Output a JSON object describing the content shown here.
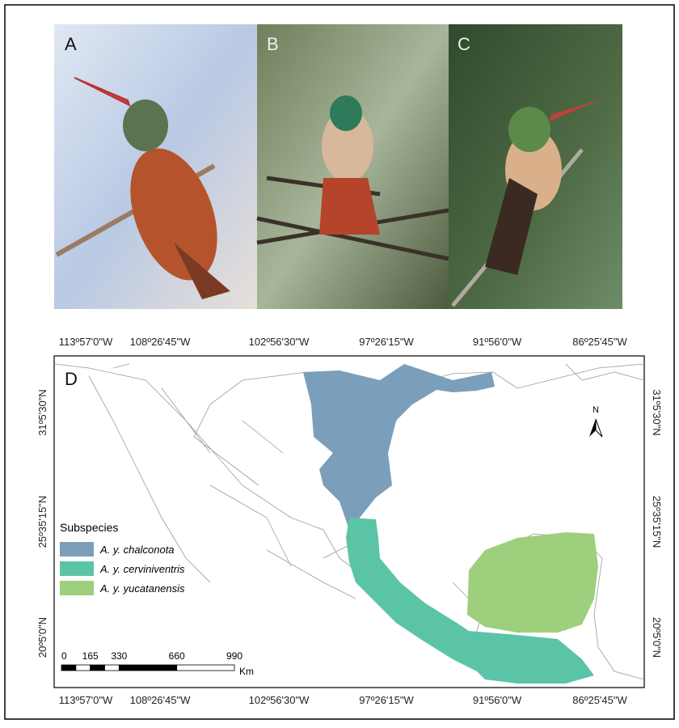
{
  "photos": [
    "A",
    "B",
    "C"
  ],
  "map": {
    "label": "D",
    "north": "N",
    "top_labels": [
      "113º57'0\"W",
      "108º26'45\"W",
      "102º56'30\"W",
      "97º26'15\"W",
      "91º56'0\"W",
      "86º25'45\"W"
    ],
    "bottom_labels": [
      "113º57'0\"W",
      "108º26'45\"W",
      "102º56'30\"W",
      "97º26'15\"W",
      "91º56'0\"W",
      "86º25'45\"W"
    ],
    "left_labels": [
      "31º5'30\"N",
      "25º35'15\"N",
      "20º5'0\"N"
    ],
    "right_labels": [
      "31º5'30\"N",
      "25º35'15\"N",
      "20º5'0\"N"
    ],
    "legend": {
      "title": "Subspecies",
      "items": [
        {
          "label": "A. y. chalconota",
          "color": "#7b9fba"
        },
        {
          "label": "A. y. cerviniventris",
          "color": "#5cc4a6"
        },
        {
          "label": "A. y. yucatanensis",
          "color": "#9dcf7c"
        }
      ]
    },
    "scale": {
      "ticks": [
        0,
        165,
        330,
        660,
        990
      ],
      "unit": "Km"
    }
  }
}
